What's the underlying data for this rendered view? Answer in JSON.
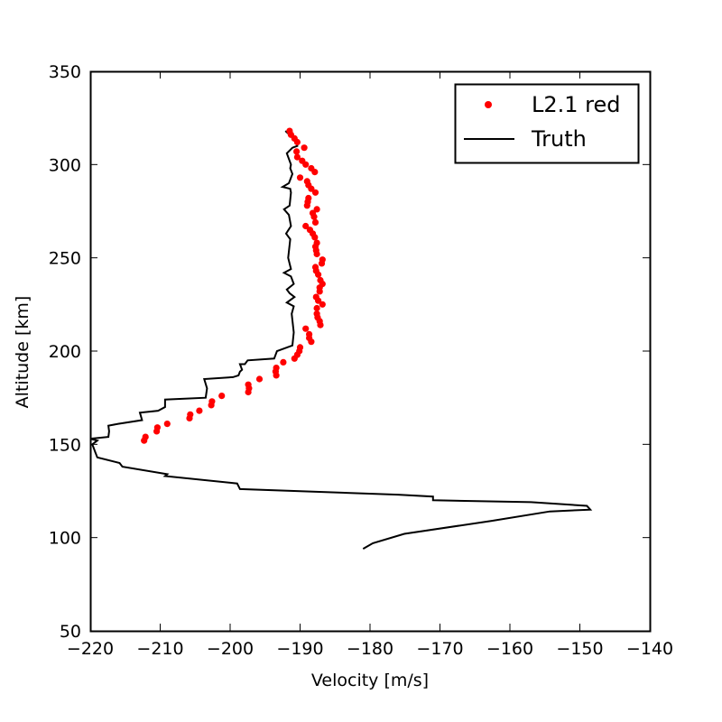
{
  "chart_data": {
    "type": "scatter",
    "xlabel": "Velocity [m/s]",
    "ylabel": "Altitude [km]",
    "xlim": [
      -220,
      -140
    ],
    "ylim": [
      50,
      350
    ],
    "xticks": [
      -220,
      -210,
      -200,
      -190,
      -180,
      -170,
      -160,
      -150,
      -140
    ],
    "yticks": [
      50,
      100,
      150,
      200,
      250,
      300,
      350
    ],
    "grid": false,
    "legend_position": "top-right",
    "legend": [
      {
        "label": "L2.1 red",
        "marker": "dot",
        "color": "#ff0000"
      },
      {
        "label": "Truth",
        "marker": "line",
        "color": "#000000"
      }
    ],
    "series": [
      {
        "name": "L2.1 red",
        "kind": "scatter",
        "color": "#ff0000",
        "points": [
          [
            -212.3,
            152
          ],
          [
            -212.1,
            154
          ],
          [
            -210.5,
            157
          ],
          [
            -210.4,
            159
          ],
          [
            -209,
            161
          ],
          [
            -205.8,
            164
          ],
          [
            -205.7,
            166
          ],
          [
            -204.4,
            168
          ],
          [
            -202.7,
            171
          ],
          [
            -202.6,
            173
          ],
          [
            -201.2,
            176
          ],
          [
            -197.4,
            178
          ],
          [
            -197.3,
            180
          ],
          [
            -197.4,
            182
          ],
          [
            -195.8,
            185
          ],
          [
            -193.4,
            187
          ],
          [
            -193.5,
            189
          ],
          [
            -193.4,
            191
          ],
          [
            -192.4,
            194
          ],
          [
            -190.8,
            196
          ],
          [
            -190.4,
            198
          ],
          [
            -190.1,
            200
          ],
          [
            -190,
            202
          ],
          [
            -188.4,
            205
          ],
          [
            -188.7,
            207
          ],
          [
            -188.7,
            209
          ],
          [
            -189.2,
            212
          ],
          [
            -187.1,
            214
          ],
          [
            -187.2,
            216
          ],
          [
            -187.5,
            218
          ],
          [
            -187.6,
            220
          ],
          [
            -187.6,
            223
          ],
          [
            -186.8,
            225
          ],
          [
            -187.4,
            227
          ],
          [
            -187.7,
            229
          ],
          [
            -187.2,
            232
          ],
          [
            -187.2,
            234
          ],
          [
            -186.8,
            236
          ],
          [
            -187.1,
            238
          ],
          [
            -187.4,
            241
          ],
          [
            -187.7,
            243
          ],
          [
            -187.8,
            245
          ],
          [
            -186.9,
            247
          ],
          [
            -186.8,
            249
          ],
          [
            -187.6,
            252
          ],
          [
            -187.7,
            254
          ],
          [
            -187.8,
            256
          ],
          [
            -187.6,
            258
          ],
          [
            -187.9,
            261
          ],
          [
            -188.2,
            263
          ],
          [
            -188.6,
            265
          ],
          [
            -189.2,
            267
          ],
          [
            -187.8,
            269
          ],
          [
            -188,
            272
          ],
          [
            -188.2,
            274
          ],
          [
            -187.6,
            276
          ],
          [
            -189,
            278
          ],
          [
            -188.9,
            280
          ],
          [
            -188.8,
            282
          ],
          [
            -187.8,
            285
          ],
          [
            -188.4,
            287
          ],
          [
            -188.8,
            289
          ],
          [
            -189,
            291
          ],
          [
            -190,
            293
          ],
          [
            -187.9,
            296
          ],
          [
            -188.4,
            298
          ],
          [
            -189.2,
            300
          ],
          [
            -189.7,
            302
          ],
          [
            -190.4,
            304
          ],
          [
            -190.5,
            307
          ],
          [
            -189.4,
            309
          ],
          [
            -190.4,
            312
          ],
          [
            -190.8,
            314
          ],
          [
            -191.3,
            316
          ],
          [
            -191.5,
            318
          ]
        ]
      },
      {
        "name": "Truth",
        "kind": "line",
        "color": "#000000",
        "points": [
          [
            -181,
            94
          ],
          [
            -179.6,
            97
          ],
          [
            -175.1,
            102
          ],
          [
            -162.6,
            109
          ],
          [
            -154.3,
            114
          ],
          [
            -148.5,
            115
          ],
          [
            -149,
            117
          ],
          [
            -157,
            119
          ],
          [
            -171,
            120
          ],
          [
            -171,
            122
          ],
          [
            -176,
            123
          ],
          [
            -198.6,
            126
          ],
          [
            -199,
            129
          ],
          [
            -209.3,
            133
          ],
          [
            -209,
            134
          ],
          [
            -215.4,
            138
          ],
          [
            -215.8,
            140
          ],
          [
            -219,
            143
          ],
          [
            -219.3,
            146
          ],
          [
            -219.7,
            150
          ],
          [
            -219,
            152
          ],
          [
            -220,
            153
          ],
          [
            -217.4,
            154
          ],
          [
            -217.3,
            157
          ],
          [
            -217.4,
            160
          ],
          [
            -216,
            161
          ],
          [
            -212.6,
            163
          ],
          [
            -212.9,
            167
          ],
          [
            -210.3,
            168
          ],
          [
            -209.3,
            170
          ],
          [
            -209.3,
            174
          ],
          [
            -203.5,
            175
          ],
          [
            -203.3,
            180
          ],
          [
            -203.7,
            185
          ],
          [
            -199.6,
            186
          ],
          [
            -198.8,
            187
          ],
          [
            -198.6,
            189
          ],
          [
            -198.3,
            190
          ],
          [
            -198.6,
            193
          ],
          [
            -197.9,
            193
          ],
          [
            -197.5,
            195
          ],
          [
            -193.7,
            196
          ],
          [
            -193.3,
            200
          ],
          [
            -191.1,
            203
          ],
          [
            -190.9,
            210
          ],
          [
            -191.2,
            220
          ],
          [
            -190.9,
            224
          ],
          [
            -191.9,
            226
          ],
          [
            -190.8,
            229
          ],
          [
            -191.5,
            231
          ],
          [
            -191.9,
            233
          ],
          [
            -190.9,
            236
          ],
          [
            -191.3,
            240
          ],
          [
            -192.3,
            242
          ],
          [
            -191.3,
            244
          ],
          [
            -191.7,
            250
          ],
          [
            -191.4,
            260
          ],
          [
            -192,
            263
          ],
          [
            -191.3,
            267
          ],
          [
            -191.6,
            273
          ],
          [
            -192.3,
            276
          ],
          [
            -191.5,
            278
          ],
          [
            -191.3,
            285
          ],
          [
            -191.4,
            287
          ],
          [
            -192.5,
            288
          ],
          [
            -191.6,
            290
          ],
          [
            -191.1,
            295
          ],
          [
            -191.4,
            298
          ],
          [
            -191.3,
            300
          ],
          [
            -191.9,
            306
          ],
          [
            -191.1,
            309
          ],
          [
            -190.4,
            310
          ],
          [
            -190.5,
            312
          ],
          [
            -190.9,
            314
          ],
          [
            -191.5,
            316
          ],
          [
            -192.1,
            318
          ]
        ]
      }
    ]
  }
}
